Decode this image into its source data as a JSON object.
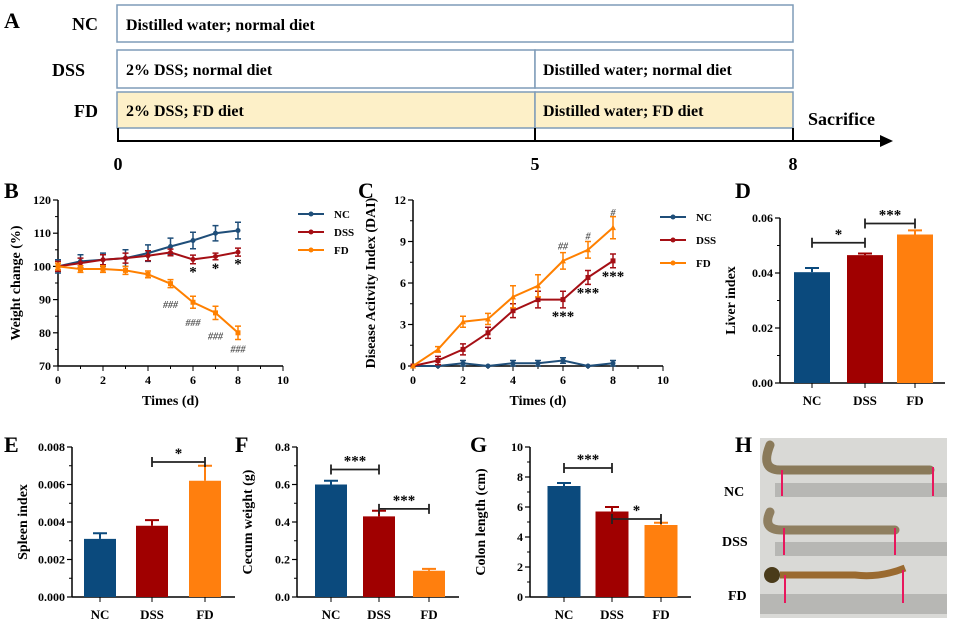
{
  "panel_a": {
    "label": "A",
    "rows": [
      {
        "group": "NC",
        "segments": [
          "Distilled water; normal diet"
        ]
      },
      {
        "group": "DSS",
        "segments": [
          "2% DSS; normal diet",
          "Distilled water; normal diet"
        ]
      },
      {
        "group": "FD",
        "segments": [
          "2% DSS; FD diet",
          "Distilled water; FD diet"
        ]
      }
    ],
    "timeline_ticks": [
      "0",
      "5",
      "8"
    ],
    "end_label": "Sacrifice",
    "fd_fill_color": "#fdf0c8"
  },
  "panel_h": {
    "label": "H",
    "groups": [
      "NC",
      "DSS",
      "FD"
    ]
  },
  "colors": {
    "NC": "#1f4e79",
    "DSS": "#a50f15",
    "FD": "#ff8000",
    "nc_bar": "#0b4a7d",
    "dss_bar": "#a00000",
    "fd_bar": "#ff7f0e"
  },
  "chart_data": [
    {
      "id": "B",
      "label": "B",
      "type": "line",
      "xlabel": "Times (d)",
      "ylabel": "Weight change (%)",
      "xlim": [
        0,
        10
      ],
      "ylim": [
        70,
        120
      ],
      "xticks": [
        "0",
        "2",
        "4",
        "6",
        "8",
        "10"
      ],
      "yticks": [
        "70",
        "80",
        "90",
        "100",
        "110",
        "120"
      ],
      "x": [
        0,
        1,
        2,
        3,
        4,
        5,
        6,
        7,
        8
      ],
      "legend": "right",
      "series": [
        {
          "name": "NC",
          "marker": "circle",
          "values": [
            100,
            101.5,
            102,
            102.5,
            104,
            106,
            107.8,
            110,
            110.8
          ],
          "err": [
            2,
            2,
            2,
            2.5,
            2.5,
            2.5,
            2.5,
            2.3,
            2.5
          ]
        },
        {
          "name": "DSS",
          "marker": "circle",
          "values": [
            100,
            101,
            102,
            102.5,
            103.2,
            104.2,
            102.1,
            103,
            104.3
          ],
          "err": [
            1.5,
            1.5,
            1.5,
            1.5,
            1.5,
            1,
            1.3,
            1,
            1.2
          ]
        },
        {
          "name": "FD",
          "marker": "square",
          "values": [
            100,
            99.2,
            99.2,
            98.8,
            97.6,
            94.8,
            89.2,
            86,
            80
          ],
          "err": [
            1,
            1,
            1,
            1.2,
            1,
            1.2,
            1.8,
            2,
            2
          ]
        }
      ],
      "annotations": [
        {
          "text": "*",
          "x": 6,
          "y": 98.5
        },
        {
          "text": "*",
          "x": 7,
          "y": 99.5
        },
        {
          "text": "*",
          "x": 8,
          "y": 100.8
        },
        {
          "text": "###",
          "x": 5,
          "y": 89
        },
        {
          "text": "###",
          "x": 6,
          "y": 83.5
        },
        {
          "text": "###",
          "x": 7,
          "y": 79.5
        },
        {
          "text": "###",
          "x": 8,
          "y": 75.5
        }
      ]
    },
    {
      "id": "C",
      "label": "C",
      "type": "line",
      "xlabel": "Times (d)",
      "ylabel": "Disease Acitvity Index (DAI)",
      "xlim": [
        0,
        10
      ],
      "ylim": [
        0,
        12
      ],
      "xticks": [
        "0",
        "2",
        "4",
        "6",
        "8",
        "10"
      ],
      "yticks": [
        "0",
        "3",
        "6",
        "9",
        "12"
      ],
      "x": [
        0,
        1,
        2,
        3,
        4,
        5,
        6,
        7,
        8
      ],
      "legend": "right",
      "series": [
        {
          "name": "NC",
          "marker": "circle",
          "values": [
            0,
            0,
            0.2,
            0,
            0.2,
            0.2,
            0.4,
            0,
            0.2
          ],
          "err": [
            0,
            0,
            0.2,
            0,
            0.2,
            0.2,
            0.2,
            0,
            0.2
          ]
        },
        {
          "name": "DSS",
          "marker": "square",
          "values": [
            0,
            0.4,
            1.2,
            2.4,
            4,
            4.8,
            4.8,
            6.4,
            7.6
          ],
          "err": [
            0,
            0.3,
            0.4,
            0.4,
            0.5,
            0.6,
            0.6,
            0.5,
            0.5
          ]
        },
        {
          "name": "FD",
          "marker": "triangle",
          "values": [
            0,
            1.2,
            3.2,
            3.4,
            5,
            5.8,
            7.6,
            8.4,
            10
          ],
          "err": [
            0,
            0.2,
            0.4,
            0.4,
            0.8,
            0.8,
            0.6,
            0.6,
            0.8
          ]
        }
      ],
      "annotations": [
        {
          "text": "***",
          "x": 6,
          "y": 3.6
        },
        {
          "text": "***",
          "x": 7,
          "y": 5.3
        },
        {
          "text": "***",
          "x": 8,
          "y": 6.5
        },
        {
          "text": "##",
          "x": 6,
          "y": 8.8
        },
        {
          "text": "#",
          "x": 7,
          "y": 9.5
        },
        {
          "text": "#",
          "x": 8,
          "y": 11.2
        }
      ]
    },
    {
      "id": "D",
      "label": "D",
      "type": "bar",
      "ylabel": "Liver index",
      "categories": [
        "NC",
        "DSS",
        "FD"
      ],
      "ylim": [
        0,
        0.06
      ],
      "yticks": [
        "0.00",
        "0.02",
        "0.04",
        "0.06"
      ],
      "values": [
        0.0403,
        0.0465,
        0.054
      ],
      "err": [
        0.0015,
        0.0006,
        0.0015
      ],
      "brackets": [
        {
          "from": 0,
          "to": 1,
          "y": 0.051,
          "text": "*"
        },
        {
          "from": 1,
          "to": 2,
          "y": 0.058,
          "text": "***"
        }
      ]
    },
    {
      "id": "E",
      "label": "E",
      "type": "bar",
      "ylabel": "Spleen index",
      "categories": [
        "NC",
        "DSS",
        "FD"
      ],
      "ylim": [
        0,
        0.008
      ],
      "yticks": [
        "0.000",
        "0.002",
        "0.004",
        "0.006",
        "0.008"
      ],
      "values": [
        0.0031,
        0.0038,
        0.0062
      ],
      "err": [
        0.0003,
        0.0003,
        0.0008
      ],
      "brackets": [
        {
          "from": 1,
          "to": 2,
          "y": 0.0072,
          "text": "*"
        }
      ]
    },
    {
      "id": "F",
      "label": "F",
      "type": "bar",
      "ylabel": "Cecum weight (g)",
      "categories": [
        "NC",
        "DSS",
        "FD"
      ],
      "ylim": [
        0,
        0.8
      ],
      "yticks": [
        "0.0",
        "0.2",
        "0.4",
        "0.6",
        "0.8"
      ],
      "values": [
        0.6,
        0.43,
        0.14
      ],
      "err": [
        0.02,
        0.03,
        0.01
      ],
      "brackets": [
        {
          "from": 0,
          "to": 1,
          "y": 0.68,
          "text": "***"
        },
        {
          "from": 1,
          "to": 2,
          "y": 0.47,
          "text": "***"
        }
      ]
    },
    {
      "id": "G",
      "label": "G",
      "type": "bar",
      "ylabel": "Colon length (cm)",
      "categories": [
        "NC",
        "DSS",
        "FD"
      ],
      "ylim": [
        0,
        10
      ],
      "yticks": [
        "0",
        "2",
        "4",
        "6",
        "8",
        "10"
      ],
      "values": [
        7.4,
        5.7,
        4.8
      ],
      "err": [
        0.2,
        0.3,
        0.15
      ],
      "brackets": [
        {
          "from": 0,
          "to": 1,
          "y": 8.6,
          "text": "***"
        },
        {
          "from": 1,
          "to": 2,
          "y": 5.2,
          "text": "*"
        }
      ]
    }
  ]
}
